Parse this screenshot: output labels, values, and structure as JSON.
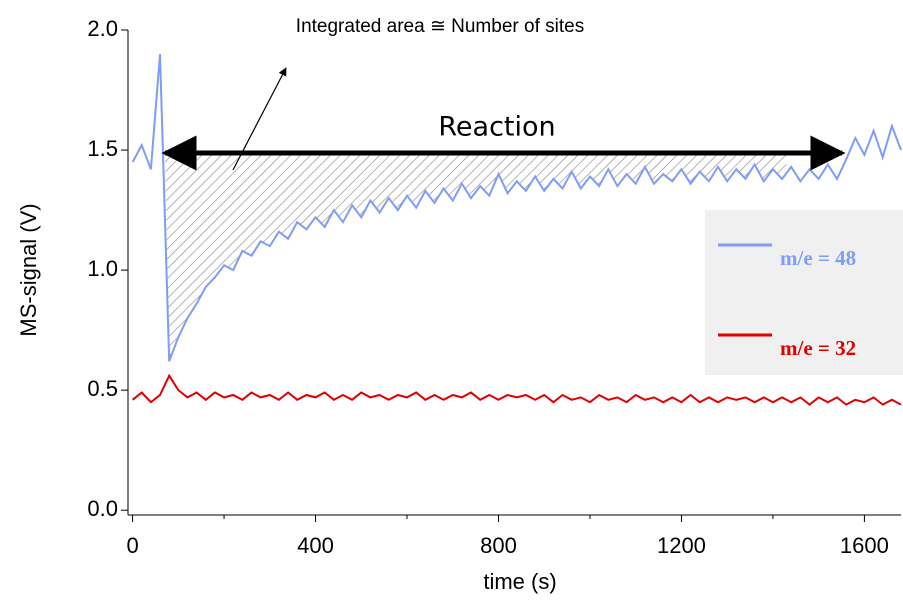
{
  "chart_data": {
    "type": "line",
    "xlabel": "time (s)",
    "ylabel": "MS-signal (V)",
    "annotations": [
      "Integrated area ≅ Number of sites",
      "Reaction"
    ],
    "x": [
      0,
      20,
      40,
      60,
      80,
      100,
      120,
      140,
      160,
      180,
      200,
      220,
      240,
      260,
      280,
      300,
      320,
      340,
      360,
      380,
      400,
      420,
      440,
      460,
      480,
      500,
      520,
      540,
      560,
      580,
      600,
      620,
      640,
      660,
      680,
      700,
      720,
      740,
      760,
      780,
      800,
      820,
      840,
      860,
      880,
      900,
      920,
      940,
      960,
      980,
      1000,
      1020,
      1040,
      1060,
      1080,
      1100,
      1120,
      1140,
      1160,
      1180,
      1200,
      1220,
      1240,
      1260,
      1280,
      1300,
      1320,
      1340,
      1360,
      1380,
      1400,
      1420,
      1440,
      1460,
      1480,
      1500,
      1520,
      1540,
      1560,
      1580,
      1600,
      1620,
      1640,
      1660,
      1680
    ],
    "series": [
      {
        "name": "m/e = 48",
        "color": "#7f9cf8",
        "values": [
          1.45,
          1.52,
          1.42,
          1.9,
          0.62,
          0.72,
          0.8,
          0.86,
          0.93,
          0.97,
          1.02,
          1.0,
          1.08,
          1.06,
          1.12,
          1.1,
          1.16,
          1.13,
          1.2,
          1.17,
          1.22,
          1.18,
          1.25,
          1.2,
          1.27,
          1.22,
          1.29,
          1.24,
          1.3,
          1.25,
          1.31,
          1.26,
          1.33,
          1.28,
          1.34,
          1.29,
          1.36,
          1.3,
          1.35,
          1.31,
          1.4,
          1.32,
          1.37,
          1.33,
          1.39,
          1.33,
          1.38,
          1.34,
          1.41,
          1.34,
          1.39,
          1.35,
          1.42,
          1.35,
          1.4,
          1.36,
          1.43,
          1.36,
          1.4,
          1.37,
          1.42,
          1.36,
          1.41,
          1.37,
          1.43,
          1.37,
          1.42,
          1.38,
          1.44,
          1.37,
          1.42,
          1.38,
          1.43,
          1.37,
          1.42,
          1.38,
          1.44,
          1.38,
          1.46,
          1.55,
          1.48,
          1.58,
          1.47,
          1.6,
          1.5
        ]
      },
      {
        "name": "m/e = 32",
        "color": "#e00000",
        "values": [
          0.46,
          0.49,
          0.45,
          0.48,
          0.56,
          0.5,
          0.47,
          0.49,
          0.46,
          0.49,
          0.47,
          0.48,
          0.46,
          0.49,
          0.47,
          0.48,
          0.46,
          0.49,
          0.46,
          0.48,
          0.47,
          0.49,
          0.46,
          0.48,
          0.46,
          0.49,
          0.47,
          0.48,
          0.46,
          0.48,
          0.47,
          0.49,
          0.46,
          0.48,
          0.46,
          0.48,
          0.47,
          0.49,
          0.46,
          0.48,
          0.46,
          0.48,
          0.47,
          0.48,
          0.46,
          0.48,
          0.45,
          0.48,
          0.46,
          0.47,
          0.45,
          0.48,
          0.46,
          0.47,
          0.45,
          0.48,
          0.46,
          0.47,
          0.45,
          0.47,
          0.45,
          0.48,
          0.45,
          0.47,
          0.45,
          0.47,
          0.46,
          0.47,
          0.45,
          0.47,
          0.45,
          0.47,
          0.45,
          0.47,
          0.44,
          0.47,
          0.45,
          0.47,
          0.44,
          0.46,
          0.45,
          0.47,
          0.44,
          0.46,
          0.44
        ]
      }
    ],
    "xlim": [
      -10,
      1680
    ],
    "ylim": [
      -0.02,
      2.0
    ],
    "xticks": [
      0,
      400,
      800,
      1200,
      1600
    ],
    "xminorticks": [
      200,
      600,
      1000,
      1400
    ],
    "yticks": [
      {
        "value": 0,
        "label": "0.0"
      },
      0.5,
      {
        "value": 1,
        "label": "1.0"
      },
      1.5,
      {
        "value": 2,
        "label": "2.0"
      }
    ]
  }
}
